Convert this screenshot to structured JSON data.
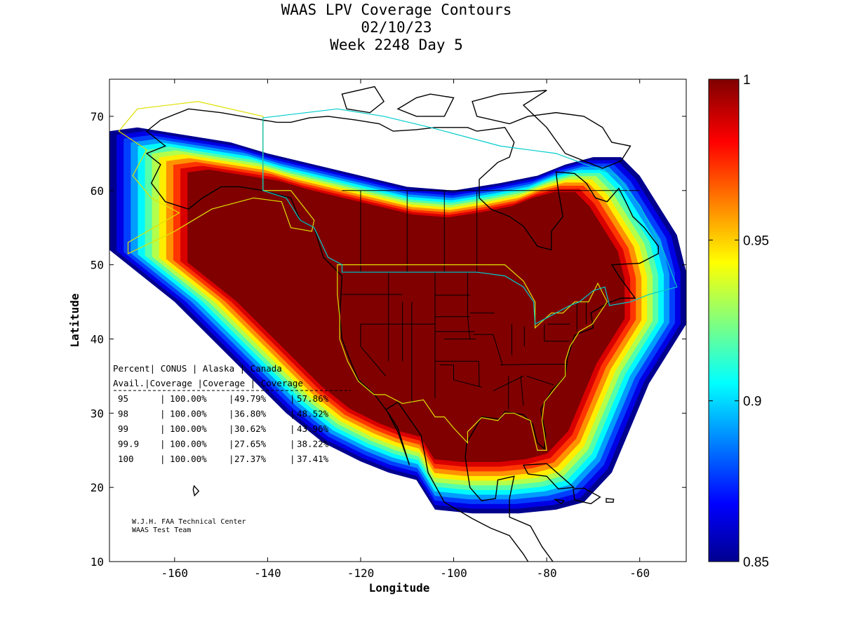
{
  "chart_data": {
    "type": "heatmap",
    "title": [
      "WAAS LPV Coverage Contours",
      "02/10/23",
      "Week 2248 Day 5"
    ],
    "xlabel": "Longitude",
    "ylabel": "Latitude",
    "xlim": [
      -174,
      -50
    ],
    "ylim": [
      10,
      75
    ],
    "x_ticks": [
      -160,
      -140,
      -120,
      -100,
      -80,
      -60
    ],
    "y_ticks": [
      10,
      20,
      30,
      40,
      50,
      60,
      70
    ],
    "colorbar": {
      "range": [
        0.85,
        1
      ],
      "ticks": [
        0.85,
        0.9,
        0.95,
        1
      ],
      "tick_labels": [
        "0.85",
        "0.9",
        "0.95",
        "1"
      ],
      "colormap": "jet"
    },
    "coverage_table": {
      "header": [
        "Percent| CONUS    | Alaska   | Canada",
        " Avail.|Coverage |Coverage | Coverage"
      ],
      "rows": [
        {
          "avail": "95",
          "conus": "100.00%",
          "alaska": "49.79%",
          "canada": "57.86%"
        },
        {
          "avail": "98",
          "conus": "100.00%",
          "alaska": "36.80%",
          "canada": "48.52%"
        },
        {
          "avail": "99",
          "conus": "100.00%",
          "alaska": "30.62%",
          "canada": "43.96%"
        },
        {
          "avail": "99.9",
          "conus": "100.00%",
          "alaska": "27.65%",
          "canada": "38.22%"
        },
        {
          "avail": "100",
          "conus": "100.00%",
          "alaska": "27.37%",
          "canada": "37.41%"
        }
      ]
    },
    "credits": [
      "W.J.H. FAA Technical Center",
      "WAAS Test Team"
    ],
    "coverage_region_outline": [
      [
        -174,
        68
      ],
      [
        -168,
        68.5
      ],
      [
        -158,
        67.5
      ],
      [
        -148,
        66.5
      ],
      [
        -140,
        65
      ],
      [
        -130,
        63.5
      ],
      [
        -120,
        62
      ],
      [
        -110,
        60.5
      ],
      [
        -100,
        60
      ],
      [
        -90,
        61
      ],
      [
        -82,
        62
      ],
      [
        -76,
        63.5
      ],
      [
        -70,
        64.5
      ],
      [
        -64,
        64.5
      ],
      [
        -60,
        62
      ],
      [
        -56,
        58
      ],
      [
        -52,
        54
      ],
      [
        -50,
        49
      ],
      [
        -50,
        42
      ],
      [
        -54,
        38
      ],
      [
        -58,
        34
      ],
      [
        -62,
        28
      ],
      [
        -66,
        22
      ],
      [
        -72,
        18
      ],
      [
        -78,
        17
      ],
      [
        -86,
        16.5
      ],
      [
        -96,
        16.5
      ],
      [
        -104,
        17
      ],
      [
        -108,
        21
      ],
      [
        -114,
        22
      ],
      [
        -120,
        23.5
      ],
      [
        -128,
        26
      ],
      [
        -136,
        30
      ],
      [
        -144,
        35
      ],
      [
        -152,
        40
      ],
      [
        -160,
        45
      ],
      [
        -168,
        49
      ],
      [
        -174,
        52
      ]
    ]
  },
  "colors": {
    "max_coverage": "#800000",
    "outline_conus": "#e0e000",
    "outline_canada": "#00cccc"
  }
}
